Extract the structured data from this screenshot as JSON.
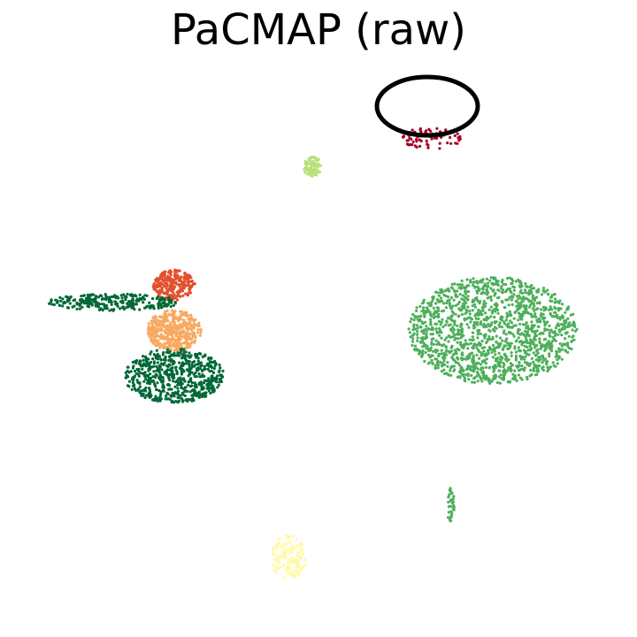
{
  "chart_data": {
    "type": "scatter",
    "title": "PaCMAP    (raw)",
    "xlabel": "",
    "ylabel": "",
    "axes_visible": false,
    "grid": false,
    "legend": "none",
    "xlim": [
      0,
      100
    ],
    "ylim": [
      0,
      100
    ],
    "annotations": [
      {
        "type": "ellipse-highlight",
        "target_cluster": "top-right-small",
        "color": "#000000"
      }
    ],
    "clusters": [
      {
        "name": "top-right-small",
        "color": "#a50026",
        "center": [
          69,
          85
        ],
        "spread": [
          5.2,
          2.0
        ],
        "n": 70
      },
      {
        "name": "top-small-lightgreen",
        "color": "#b8e07a",
        "center": [
          49,
          80
        ],
        "spread": [
          1.6,
          1.8
        ],
        "n": 90
      },
      {
        "name": "left-top-red",
        "color": "#e2502e",
        "center": [
          26,
          59
        ],
        "spread": [
          3.5,
          2.7
        ],
        "n": 260
      },
      {
        "name": "left-middle-orange",
        "color": "#f7a960",
        "center": [
          26,
          51
        ],
        "spread": [
          4.5,
          3.6
        ],
        "n": 420
      },
      {
        "name": "left-bottom-darkgreen",
        "color": "#006837",
        "center": [
          26,
          43
        ],
        "spread": [
          8.3,
          4.8
        ],
        "n": 650
      },
      {
        "name": "left-arm-darkgreen",
        "color": "#006837",
        "center": [
          16,
          56
        ],
        "spread": [
          11,
          1.5
        ],
        "n": 260
      },
      {
        "name": "right-large-green",
        "color": "#4daf5a",
        "center": [
          79,
          51
        ],
        "spread": [
          14,
          9.5
        ],
        "n": 1500
      },
      {
        "name": "bottom-right-thin",
        "color": "#4daf5a",
        "center": [
          72,
          20
        ],
        "spread": [
          0.6,
          3.2
        ],
        "n": 40
      },
      {
        "name": "bottom-yellow",
        "color": "#fffaaa",
        "center": [
          45,
          11
        ],
        "spread": [
          3,
          4
        ],
        "n": 150
      }
    ]
  }
}
